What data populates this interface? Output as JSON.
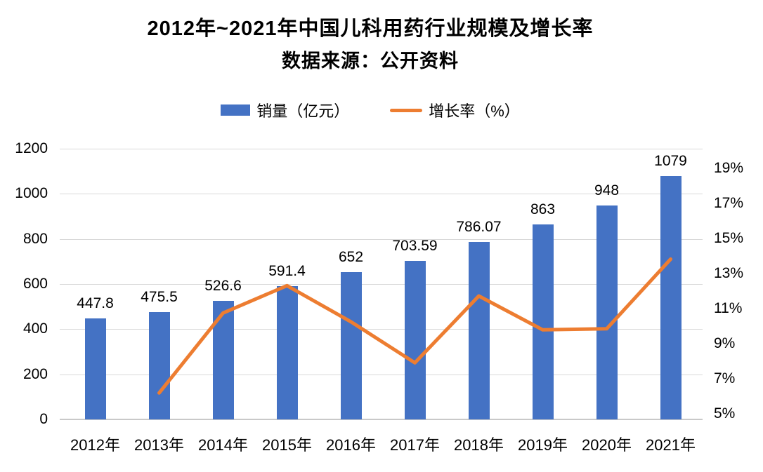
{
  "chart_data": {
    "type": "bar",
    "title": "2012年~2021年中国儿科用药行业规模及增长率",
    "subtitle": "数据来源：公开资料",
    "categories": [
      "2012年",
      "2013年",
      "2014年",
      "2015年",
      "2016年",
      "2017年",
      "2018年",
      "2019年",
      "2020年",
      "2021年"
    ],
    "series": [
      {
        "name": "销量（亿元）",
        "type": "bar",
        "axis": "left",
        "color": "#4472C4",
        "values": [
          447.8,
          475.5,
          526.6,
          591.4,
          652,
          703.59,
          786.07,
          863,
          948,
          1079
        ],
        "data_labels": [
          "447.8",
          "475.5",
          "526.6",
          "591.4",
          "652",
          "703.59",
          "786.07",
          "863",
          "948",
          "1079"
        ]
      },
      {
        "name": "增长率（%）",
        "type": "line",
        "axis": "right",
        "color": "#ED7D31",
        "values": [
          null,
          6.19,
          10.75,
          12.31,
          10.25,
          7.91,
          11.72,
          9.79,
          9.85,
          13.82
        ]
      }
    ],
    "left_axis": {
      "min": 0,
      "max": 1200,
      "step": 200,
      "tick_labels": [
        "1200",
        "1000",
        "800",
        "600",
        "400",
        "200",
        "0"
      ]
    },
    "right_axis": {
      "min": 5,
      "max": 19,
      "step": 2,
      "tick_labels": [
        "19%",
        "17%",
        "15%",
        "13%",
        "11%",
        "9%",
        "7%",
        "5%"
      ]
    },
    "grid": true,
    "legend_position": "top",
    "colors": {
      "bar": "#4472C4",
      "line": "#ED7D31",
      "gridline": "#D9D9D9",
      "axis_line": "#C9C9C9",
      "text": "#000000"
    }
  }
}
